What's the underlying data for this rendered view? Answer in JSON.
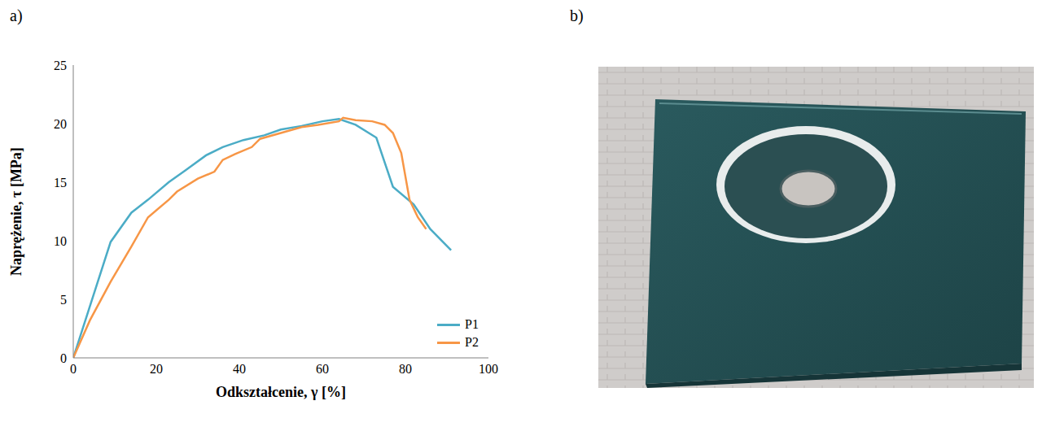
{
  "chart_data": {
    "type": "line",
    "panel_label": "a)",
    "x_label": "Odkształcenie, γ [%]",
    "y_label": "Naprężenie, τ [MPa]",
    "xlim": [
      0,
      100
    ],
    "xticks": [
      0,
      20,
      40,
      60,
      80,
      100
    ],
    "ylim": [
      0,
      25
    ],
    "yticks": [
      0,
      5,
      10,
      15,
      20,
      25
    ],
    "grid": false,
    "legend": "lower right",
    "series": [
      {
        "name": "P1",
        "color": "#4bacc6",
        "x": [
          0,
          9,
          14,
          18,
          23,
          27,
          32,
          36,
          41,
          46,
          50,
          55,
          60,
          64,
          68,
          73,
          77,
          82,
          86,
          91
        ],
        "values": [
          0,
          9.9,
          12.4,
          13.5,
          15,
          16,
          17.3,
          18,
          18.6,
          19,
          19.5,
          19.8,
          20.2,
          20.4,
          19.9,
          18.8,
          14.6,
          13.1,
          11,
          9.2
        ]
      },
      {
        "name": "P2",
        "color": "#f79646",
        "x": [
          0,
          4,
          9,
          14,
          18,
          23,
          25,
          30,
          34,
          36,
          39,
          43,
          45,
          50,
          55,
          59,
          64,
          65,
          68,
          72,
          75,
          77,
          79,
          81,
          83,
          85
        ],
        "values": [
          0,
          3.2,
          6.5,
          9.5,
          12,
          13.5,
          14.2,
          15.3,
          15.9,
          16.9,
          17.4,
          18,
          18.7,
          19.2,
          19.7,
          19.9,
          20.2,
          20.5,
          20.3,
          20.2,
          19.9,
          19.2,
          17.5,
          13.5,
          12,
          11
        ]
      }
    ]
  },
  "photo": {
    "panel_label": "b)"
  }
}
